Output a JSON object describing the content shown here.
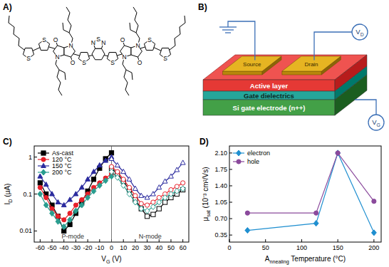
{
  "panels": {
    "A": {
      "label": "A)",
      "atoms": [
        "S",
        "S",
        "N",
        "O",
        "N",
        "O",
        "S",
        "N",
        "S",
        "N",
        "S",
        "N",
        "O",
        "N",
        "O",
        "S",
        "S"
      ]
    },
    "B": {
      "label": "B)",
      "electrodes": [
        "Source",
        "Drain"
      ],
      "layers": [
        "Active layer",
        "Gate dielectrics",
        "Si gate electrode (n++)"
      ],
      "terminals": [
        "VD",
        "VG"
      ]
    }
  },
  "chart_data": [
    {
      "type": "line",
      "label": "C)",
      "xlabel": "VG (V)",
      "ylabel": "ID (μA)",
      "log": "y",
      "xlim": [
        -65,
        65
      ],
      "xticks": [
        -60,
        -50,
        -40,
        -30,
        -20,
        -10,
        0,
        10,
        20,
        30,
        40,
        50,
        60
      ],
      "ylim": [
        0.005,
        2
      ],
      "yticks": [
        0.01,
        0.1,
        1
      ],
      "grid": false,
      "legend": "upper left",
      "annotations": [
        "P-mode",
        "N-mode"
      ],
      "series": [
        {
          "name": "As-cast",
          "color": "#000000",
          "marker": "square",
          "x": [
            -60,
            -55,
            -50,
            -45,
            -40,
            -35,
            -30,
            -25,
            -20,
            -15,
            -10,
            -5,
            0
          ],
          "values": [
            0.2,
            0.1,
            0.05,
            0.025,
            0.01,
            0.015,
            0.03,
            0.06,
            0.12,
            0.25,
            0.5,
            0.9,
            1.3
          ]
        },
        {
          "name": "120 °C",
          "color": "#e8202a",
          "marker": "circle",
          "x": [
            -60,
            -55,
            -50,
            -45,
            -40,
            -35,
            -30,
            -25,
            -20,
            -15,
            -10,
            -5,
            0
          ],
          "values": [
            0.15,
            0.08,
            0.04,
            0.025,
            0.02,
            0.03,
            0.05,
            0.07,
            0.1,
            0.15,
            0.2,
            0.27,
            0.35
          ]
        },
        {
          "name": "150 °C",
          "color": "#2b2b9e",
          "marker": "triangle",
          "x": [
            -60,
            -55,
            -50,
            -45,
            -40,
            -35,
            -30,
            -25,
            -20,
            -15,
            -10,
            -5,
            0
          ],
          "values": [
            0.3,
            0.18,
            0.1,
            0.06,
            0.05,
            0.07,
            0.1,
            0.15,
            0.25,
            0.4,
            0.6,
            0.8,
            1.0
          ]
        },
        {
          "name": "200 °C",
          "color": "#2a9d8f",
          "marker": "diamond",
          "x": [
            -60,
            -55,
            -50,
            -45,
            -40,
            -35,
            -30,
            -25,
            -20,
            -15,
            -10,
            -5,
            0
          ],
          "values": [
            0.1,
            0.05,
            0.03,
            0.018,
            0.013,
            0.02,
            0.035,
            0.05,
            0.08,
            0.12,
            0.17,
            0.23,
            0.3
          ]
        },
        {
          "name": "As-cast",
          "color": "#000000",
          "marker": "open-square",
          "x": [
            0,
            5,
            10,
            15,
            20,
            25,
            30,
            35,
            40,
            45,
            50,
            55,
            60
          ],
          "values": [
            0.5,
            0.35,
            0.22,
            0.13,
            0.07,
            0.04,
            0.025,
            0.028,
            0.04,
            0.06,
            0.08,
            0.1,
            0.13
          ]
        },
        {
          "name": "120 °C",
          "color": "#e8202a",
          "marker": "open-circle",
          "x": [
            0,
            5,
            10,
            15,
            20,
            25,
            30,
            35,
            40,
            45,
            50,
            55,
            60
          ],
          "values": [
            0.55,
            0.4,
            0.25,
            0.15,
            0.09,
            0.055,
            0.05,
            0.06,
            0.08,
            0.1,
            0.13,
            0.16,
            0.2
          ]
        },
        {
          "name": "150 °C",
          "color": "#2b2b9e",
          "marker": "open-triangle",
          "x": [
            0,
            5,
            10,
            15,
            20,
            25,
            30,
            35,
            40,
            45,
            50,
            55,
            60
          ],
          "values": [
            0.9,
            0.6,
            0.4,
            0.25,
            0.14,
            0.09,
            0.08,
            0.1,
            0.15,
            0.22,
            0.3,
            0.45,
            0.7
          ]
        },
        {
          "name": "200 °C",
          "color": "#2a9d8f",
          "marker": "open-diamond",
          "x": [
            0,
            5,
            10,
            15,
            20,
            25,
            30,
            35,
            40,
            45,
            50,
            55,
            60
          ],
          "values": [
            0.4,
            0.28,
            0.17,
            0.1,
            0.06,
            0.04,
            0.035,
            0.045,
            0.06,
            0.08,
            0.1,
            0.12,
            0.14
          ]
        }
      ]
    },
    {
      "type": "line",
      "label": "D)",
      "xlabel": "Annealing Temperature (°C)",
      "ylabel": "μsat (10⁻³ cm²/Vs)",
      "x": [
        25,
        120,
        150,
        200
      ],
      "xlim": [
        0,
        210
      ],
      "xticks": [
        0,
        50,
        100,
        150,
        200
      ],
      "ylim": [
        0.2,
        2.25
      ],
      "yticks": [
        0.35,
        {
          "value": 0.7,
          "label": "0.70"
        },
        1.05,
        {
          "value": 1.4,
          "label": "1.40"
        },
        1.75,
        {
          "value": 2.1,
          "label": "2.10"
        }
      ],
      "grid": false,
      "legend": "upper left",
      "series": [
        {
          "name": "electron",
          "color": "#1f8fd0",
          "marker": "diamond",
          "values": [
            0.45,
            0.6,
            2.1,
            0.4
          ]
        },
        {
          "name": "hole",
          "color": "#8b4a9c",
          "marker": "circle",
          "values": [
            0.82,
            0.82,
            2.1,
            1.07
          ]
        }
      ]
    }
  ]
}
